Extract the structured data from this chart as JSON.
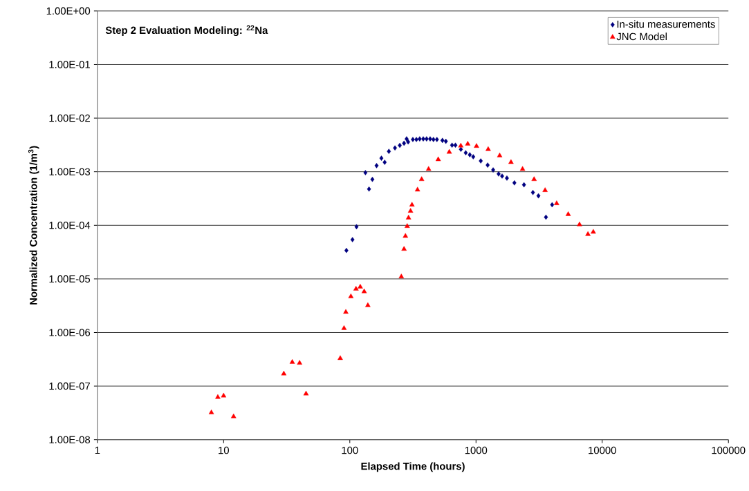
{
  "chart_data": {
    "type": "scatter",
    "annotations": [
      "**Step 2 Evaluation Modeling: $^{22}$Na**"
    ],
    "xlabel": "Elapsed Time (hours)",
    "ylabel": "Normalized Concentration (1/m$^{3}$)",
    "log": "xy",
    "grid": "y",
    "legend": "top right",
    "xlim": [
      1,
      100000
    ],
    "xticks": [
      1,
      10,
      100,
      1000,
      10000,
      100000
    ],
    "ylim": [
      1e-08,
      1
    ],
    "yticks": [
      {
        "value": 1e-08,
        "label": "1.00E-08"
      },
      {
        "value": 1e-07,
        "label": "1.00E-07"
      },
      {
        "value": 1e-06,
        "label": "1.00E-06"
      },
      {
        "value": 1e-05,
        "label": "1.00E-05"
      },
      {
        "value": 0.0001,
        "label": "1.00E-04"
      },
      {
        "value": 0.001,
        "label": "1.00E-03"
      },
      {
        "value": 0.01,
        "label": "1.00E-02"
      },
      {
        "value": 0.1,
        "label": "1.00E-01"
      },
      {
        "value": 1,
        "label": "1.00E+00"
      }
    ],
    "series": [
      {
        "name": "In-situ measurements",
        "color": "#000080",
        "marker": "diamond",
        "x": [
          94,
          105,
          113,
          133,
          142,
          151,
          163,
          178,
          189,
          204,
          228,
          249,
          269,
          282,
          290,
          316,
          337,
          358,
          382,
          406,
          433,
          460,
          490,
          542,
          577,
          646,
          687,
          759,
          829,
          893,
          951,
          1091,
          1237,
          1367,
          1511,
          1610,
          1758,
          2015,
          2400,
          2825,
          3124,
          3583,
          4011
        ],
        "values": [
          3.4e-05,
          5.4e-05,
          9.4e-05,
          0.00096,
          0.000475,
          0.00072,
          0.0013,
          0.00179,
          0.0015,
          0.0024,
          0.00278,
          0.0031,
          0.0034,
          0.0041,
          0.0036,
          0.004,
          0.004,
          0.0041,
          0.0041,
          0.0041,
          0.0041,
          0.004,
          0.004,
          0.00384,
          0.0037,
          0.00313,
          0.00313,
          0.00262,
          0.00226,
          0.00207,
          0.0019,
          0.00159,
          0.00133,
          0.00108,
          0.00091,
          0.00083,
          0.00076,
          0.00062,
          0.00057,
          0.00041,
          0.000355,
          0.000142,
          0.000242
        ]
      },
      {
        "name": "JNC Model",
        "color": "#ff0000",
        "marker": "triangle",
        "x": [
          8,
          9,
          10,
          12,
          30,
          35,
          40,
          45,
          84,
          90,
          93,
          102,
          112,
          121,
          130,
          139,
          256,
          269,
          276,
          285,
          292,
          303,
          311,
          344,
          371,
          421,
          502,
          614,
          758,
          860,
          1009,
          1249,
          1540,
          1894,
          2338,
          2886,
          3528,
          4356,
          5378,
          6610,
          7709,
          8500
        ],
        "values": [
          3.2e-08,
          6.2e-08,
          6.6e-08,
          2.7e-08,
          1.7e-07,
          2.8e-07,
          2.7e-07,
          7.2e-08,
          3.3e-07,
          1.2e-06,
          2.4e-06,
          4.7e-06,
          6.5e-06,
          7.1e-06,
          5.8e-06,
          3.2e-06,
          1.1e-05,
          3.6e-05,
          6.3e-05,
          9.6e-05,
          0.000138,
          0.000185,
          0.00024,
          0.00046,
          0.00072,
          0.00112,
          0.00169,
          0.00233,
          0.00304,
          0.0033,
          0.003,
          0.00262,
          0.002,
          0.0015,
          0.00112,
          0.00072,
          0.00045,
          0.000256,
          0.00016,
          0.000103,
          6.8e-05,
          7.5e-05
        ]
      }
    ]
  }
}
